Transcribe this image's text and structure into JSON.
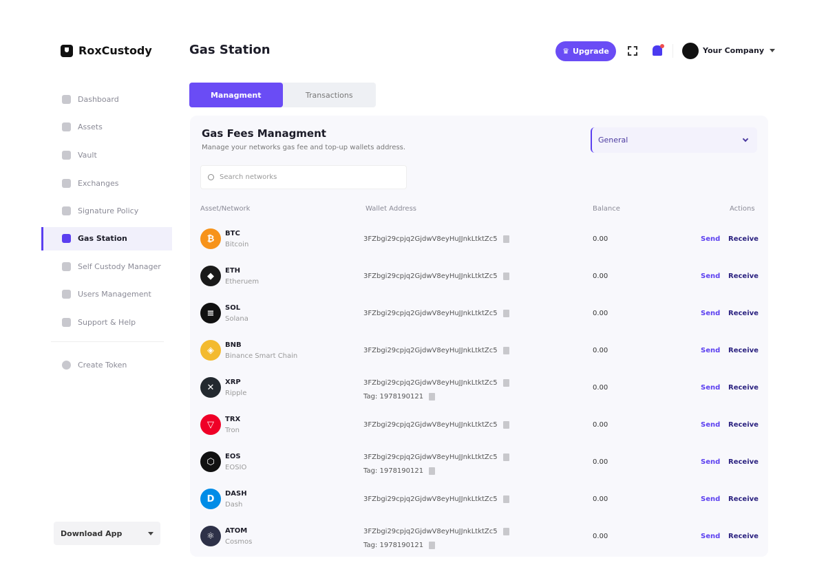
{
  "brand": {
    "name": "RoxCustody"
  },
  "sidebar": {
    "items": [
      {
        "label": "Dashboard",
        "icon": "dashboard-icon"
      },
      {
        "label": "Assets",
        "icon": "assets-icon"
      },
      {
        "label": "Vault",
        "icon": "vault-icon"
      },
      {
        "label": "Exchanges",
        "icon": "exchange-icon"
      },
      {
        "label": "Signature Policy",
        "icon": "signature-icon"
      },
      {
        "label": "Gas Station",
        "icon": "gas-pump-icon",
        "active": true
      },
      {
        "label": "Self Custody Manager",
        "icon": "custody-icon"
      },
      {
        "label": "Users Management",
        "icon": "users-icon"
      },
      {
        "label": "Support & Help",
        "icon": "help-icon"
      }
    ],
    "create_token": "Create Token",
    "download_app": "Download App"
  },
  "header": {
    "title": "Gas Station",
    "upgrade": "Upgrade",
    "company": "Your Company"
  },
  "tabs": [
    {
      "label": "Managment",
      "active": true
    },
    {
      "label": "Transactions"
    }
  ],
  "card": {
    "title": "Gas Fees Managment",
    "subtitle": "Manage your networks gas fee and top-up wallets address.",
    "select_value": "General",
    "search_placeholder": "Search networks"
  },
  "table": {
    "headers": [
      "Asset/Network",
      "Wallet Address",
      "Balance",
      "Actions"
    ],
    "send": "Send",
    "receive": "Receive",
    "rows": [
      {
        "symbol": "BTC",
        "name": "Bitcoin",
        "address": "3FZbgi29cpjq2GjdwV8eyHuJJnkLtktZc5",
        "balance": "0.00",
        "color": "#f7931a",
        "glyph": "₿"
      },
      {
        "symbol": "ETH",
        "name": "Etheruem",
        "address": "3FZbgi29cpjq2GjdwV8eyHuJJnkLtktZc5",
        "balance": "0.00",
        "color": "#1a1a1a",
        "glyph": "◆"
      },
      {
        "symbol": "SOL",
        "name": "Solana",
        "address": "3FZbgi29cpjq2GjdwV8eyHuJJnkLtktZc5",
        "balance": "0.00",
        "color": "#111111",
        "glyph": "≡"
      },
      {
        "symbol": "BNB",
        "name": "Binance Smart Chain",
        "address": "3FZbgi29cpjq2GjdwV8eyHuJJnkLtktZc5",
        "balance": "0.00",
        "color": "#f3ba2f",
        "glyph": "◈"
      },
      {
        "symbol": "XRP",
        "name": "Ripple",
        "address": "3FZbgi29cpjq2GjdwV8eyHuJJnkLtktZc5",
        "tag": "Tag: 1978190121",
        "balance": "0.00",
        "color": "#23292f",
        "glyph": "✕"
      },
      {
        "symbol": "TRX",
        "name": "Tron",
        "address": "3FZbgi29cpjq2GjdwV8eyHuJJnkLtktZc5",
        "balance": "0.00",
        "color": "#ef0027",
        "glyph": "▽"
      },
      {
        "symbol": "EOS",
        "name": "EOSIO",
        "address": "3FZbgi29cpjq2GjdwV8eyHuJJnkLtktZc5",
        "tag": "Tag: 1978190121",
        "balance": "0.00",
        "color": "#111111",
        "glyph": "⬡"
      },
      {
        "symbol": "DASH",
        "name": "Dash",
        "address": "3FZbgi29cpjq2GjdwV8eyHuJJnkLtktZc5",
        "balance": "0.00",
        "color": "#008ce7",
        "glyph": "D"
      },
      {
        "symbol": "ATOM",
        "name": "Cosmos",
        "address": "3FZbgi29cpjq2GjdwV8eyHuJJnkLtktZc5",
        "tag": "Tag: 1978190121",
        "balance": "0.00",
        "color": "#2e3148",
        "glyph": "⚛"
      }
    ]
  },
  "colors": {
    "accent": "#6a4cf5",
    "card_bg": "#f8f8fc"
  }
}
